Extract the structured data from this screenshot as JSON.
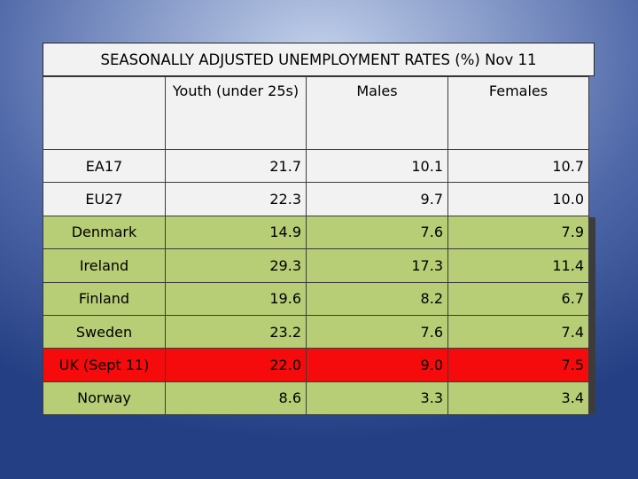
{
  "title": "SEASONALLY ADJUSTED UNEMPLOYMENT RATES (%) Nov 11",
  "columns": [
    "",
    "Youth (under 25s)",
    "Males",
    "Females"
  ],
  "rows": [
    {
      "name": "EA17",
      "youth": "21.7",
      "males": "10.1",
      "females": "10.7"
    },
    {
      "name": "EU27",
      "youth": "22.3",
      "males": "9.7",
      "females": "10.0"
    },
    {
      "name": "Denmark",
      "youth": "14.9",
      "males": "7.6",
      "females": "7.9"
    },
    {
      "name": "Ireland",
      "youth": "29.3",
      "males": "17.3",
      "females": "11.4"
    },
    {
      "name": "Finland",
      "youth": "19.6",
      "males": "8.2",
      "females": "6.7"
    },
    {
      "name": "Sweden",
      "youth": "23.2",
      "males": "7.6",
      "females": "7.4"
    },
    {
      "name": "UK (Sept 11)",
      "youth": "22.0",
      "males": "9.0",
      "females": "7.5"
    },
    {
      "name": "Norway",
      "youth": "8.6",
      "males": "3.3",
      "females": "3.4"
    }
  ],
  "colors": {
    "gray_row": "#f2f2f2",
    "green_row": "#b7cd76",
    "red_row": "#f50b0b"
  }
}
